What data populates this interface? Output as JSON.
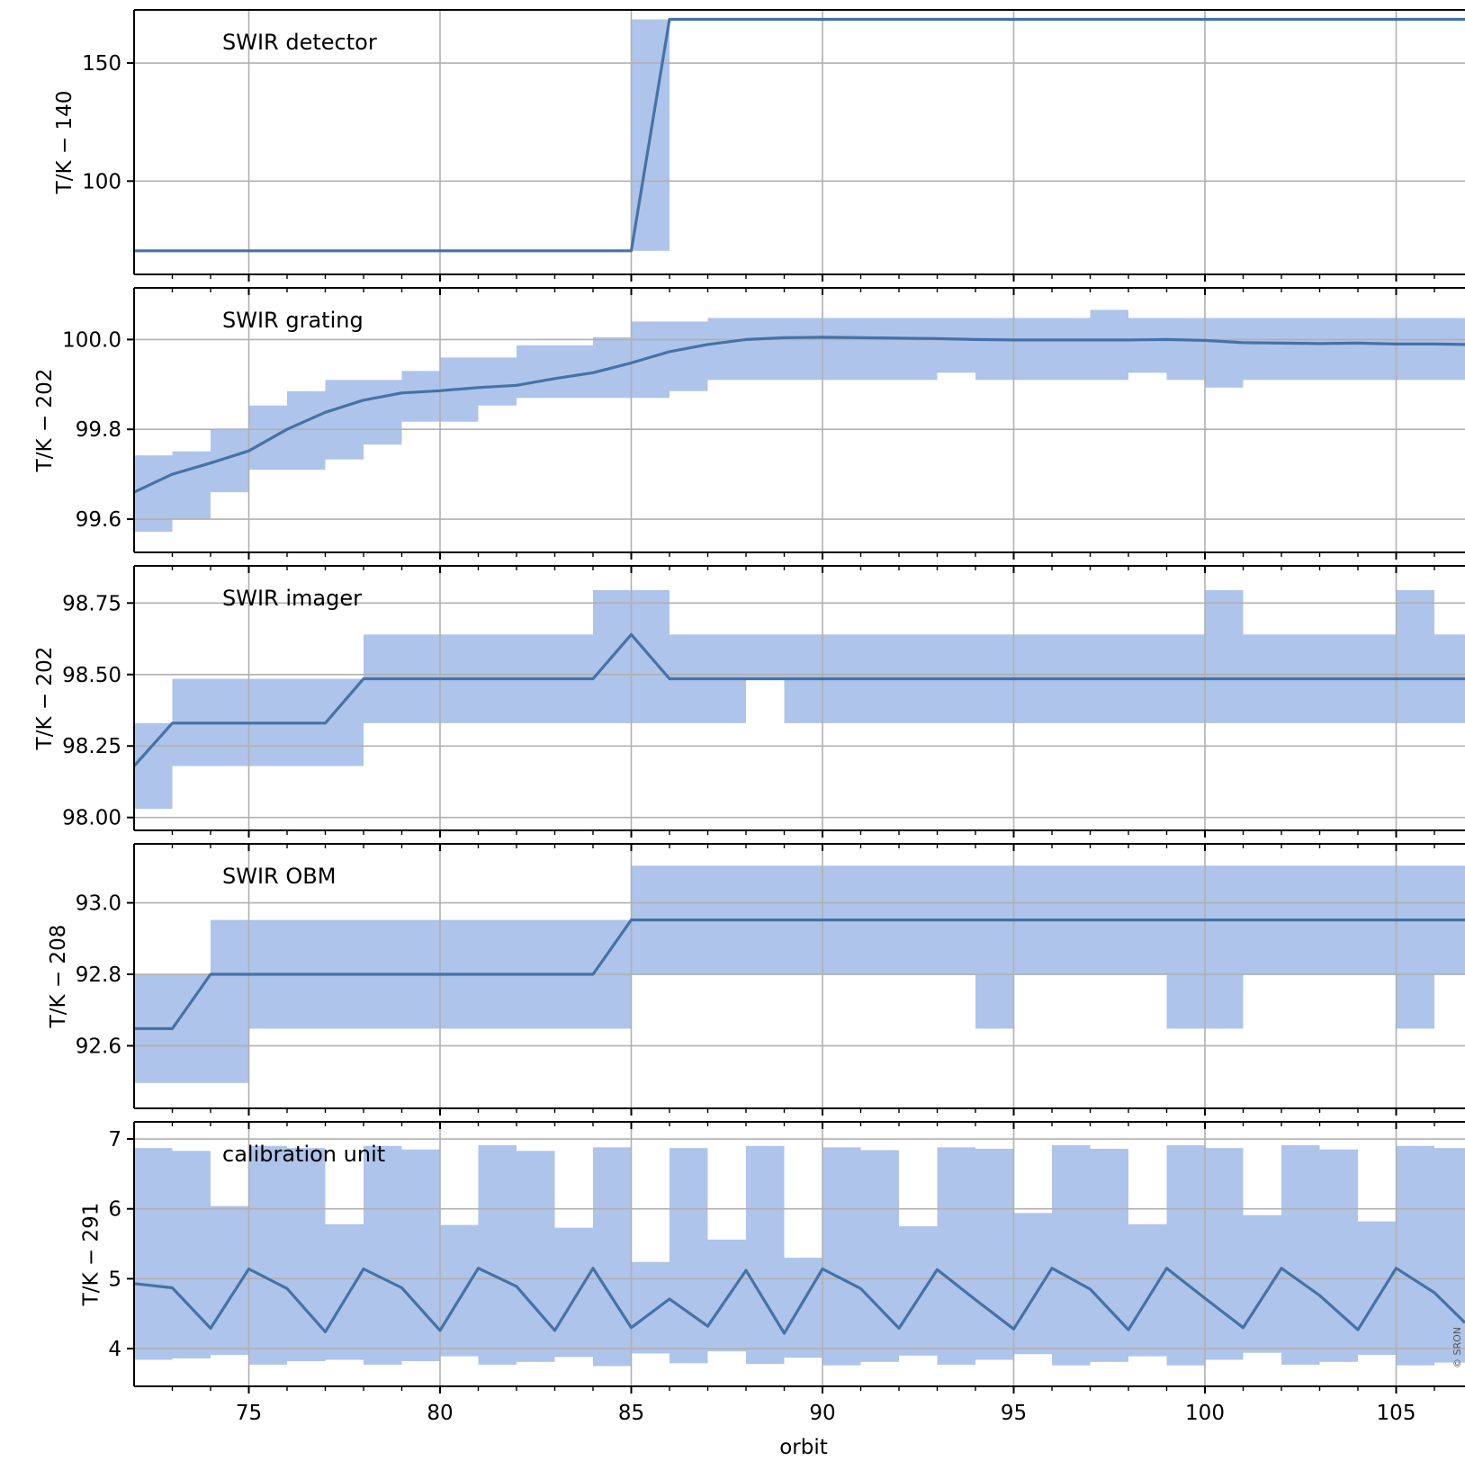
{
  "chart_data": [
    {
      "type": "line",
      "title": "SWIR detector",
      "ylabel": "T/K − 140",
      "xlabel": "",
      "xlim": [
        72,
        106.8
      ],
      "ylim": [
        60.5,
        172.5
      ],
      "yticks": [
        100,
        150
      ],
      "ytick_labels": [
        "100",
        "150"
      ],
      "grid": true,
      "colors": {
        "line": "#4572a7",
        "band": "#aec4eb"
      },
      "series": [
        {
          "x": [
            72,
            85,
            86,
            106.8
          ],
          "values": [
            70.5,
            70.5,
            168.5,
            168.5
          ]
        }
      ],
      "band": [
        {
          "x0": 72,
          "x1": 85,
          "low": 70.5,
          "high": 70.5
        },
        {
          "x0": 85,
          "x1": 86,
          "low": 70.5,
          "high": 168.5
        },
        {
          "x0": 86,
          "x1": 106.8,
          "low": 168.5,
          "high": 168.5
        }
      ]
    },
    {
      "type": "line",
      "title": "SWIR grating",
      "ylabel": "T/K − 202",
      "xlabel": "",
      "xlim": [
        72,
        106.8
      ],
      "ylim": [
        99.526,
        100.115
      ],
      "yticks": [
        99.6,
        99.8,
        100.0
      ],
      "ytick_labels": [
        "99.6",
        "99.8",
        "100.0"
      ],
      "grid": true,
      "colors": {
        "line": "#4572a7",
        "band": "#aec4eb"
      },
      "series": [
        {
          "x": [
            72,
            73,
            74,
            75,
            76,
            77,
            78,
            79,
            80,
            81,
            82,
            83,
            84,
            85,
            86,
            87,
            88,
            89,
            90,
            91,
            92,
            93,
            94,
            95,
            96,
            97,
            98,
            99,
            100,
            101,
            102,
            103,
            104,
            105,
            106,
            106.8
          ],
          "values": [
            99.66,
            99.7,
            99.725,
            99.752,
            99.8,
            99.838,
            99.865,
            99.881,
            99.886,
            99.893,
            99.898,
            99.913,
            99.926,
            99.948,
            99.973,
            99.989,
            100.0,
            100.004,
            100.005,
            100.004,
            100.003,
            100.002,
            100.0,
            99.999,
            99.999,
            99.999,
            99.999,
            100.0,
            99.998,
            99.993,
            99.992,
            99.991,
            99.992,
            99.99,
            99.99,
            99.989
          ]
        }
      ],
      "band": [
        {
          "x0": 72,
          "x1": 73,
          "low": 99.572,
          "high": 99.742
        },
        {
          "x0": 73,
          "x1": 74,
          "low": 99.6,
          "high": 99.751
        },
        {
          "x0": 74,
          "x1": 75,
          "low": 99.66,
          "high": 99.8
        },
        {
          "x0": 75,
          "x1": 76,
          "low": 99.71,
          "high": 99.853
        },
        {
          "x0": 76,
          "x1": 77,
          "low": 99.71,
          "high": 99.885
        },
        {
          "x0": 77,
          "x1": 78,
          "low": 99.733,
          "high": 99.91
        },
        {
          "x0": 78,
          "x1": 79,
          "low": 99.766,
          "high": 99.91
        },
        {
          "x0": 79,
          "x1": 80,
          "low": 99.817,
          "high": 99.93
        },
        {
          "x0": 80,
          "x1": 81,
          "low": 99.817,
          "high": 99.96
        },
        {
          "x0": 81,
          "x1": 82,
          "low": 99.853,
          "high": 99.96
        },
        {
          "x0": 82,
          "x1": 83,
          "low": 99.87,
          "high": 99.987
        },
        {
          "x0": 83,
          "x1": 84,
          "low": 99.87,
          "high": 99.987
        },
        {
          "x0": 84,
          "x1": 85,
          "low": 99.87,
          "high": 100.005
        },
        {
          "x0": 85,
          "x1": 86,
          "low": 99.87,
          "high": 100.04
        },
        {
          "x0": 86,
          "x1": 87,
          "low": 99.885,
          "high": 100.04
        },
        {
          "x0": 87,
          "x1": 93,
          "low": 99.91,
          "high": 100.048
        },
        {
          "x0": 93,
          "x1": 94,
          "low": 99.926,
          "high": 100.048
        },
        {
          "x0": 94,
          "x1": 97,
          "low": 99.91,
          "high": 100.048
        },
        {
          "x0": 97,
          "x1": 98,
          "low": 99.91,
          "high": 100.066
        },
        {
          "x0": 98,
          "x1": 99,
          "low": 99.926,
          "high": 100.048
        },
        {
          "x0": 99,
          "x1": 100,
          "low": 99.91,
          "high": 100.048
        },
        {
          "x0": 100,
          "x1": 101,
          "low": 99.893,
          "high": 100.048
        },
        {
          "x0": 101,
          "x1": 106.8,
          "low": 99.91,
          "high": 100.048
        }
      ]
    },
    {
      "type": "line",
      "title": "SWIR imager",
      "ylabel": "T/K − 202",
      "xlabel": "",
      "xlim": [
        72,
        106.8
      ],
      "ylim": [
        97.955,
        98.88
      ],
      "yticks": [
        98.0,
        98.25,
        98.5,
        98.75
      ],
      "ytick_labels": [
        "98.00",
        "98.25",
        "98.50",
        "98.75"
      ],
      "grid": true,
      "colors": {
        "line": "#4572a7",
        "band": "#aec4eb"
      },
      "series": [
        {
          "x": [
            72,
            73,
            74,
            75,
            76,
            77,
            78,
            79,
            80,
            81,
            82,
            83,
            84,
            85,
            86,
            87,
            88,
            89,
            90,
            91,
            92,
            93,
            94,
            95,
            96,
            97,
            98,
            99,
            100,
            101,
            102,
            103,
            104,
            105,
            106,
            106.8
          ],
          "values": [
            98.18,
            98.33,
            98.33,
            98.33,
            98.33,
            98.33,
            98.485,
            98.485,
            98.485,
            98.485,
            98.485,
            98.485,
            98.485,
            98.64,
            98.485,
            98.485,
            98.485,
            98.485,
            98.485,
            98.485,
            98.485,
            98.485,
            98.485,
            98.485,
            98.485,
            98.485,
            98.485,
            98.485,
            98.485,
            98.485,
            98.485,
            98.485,
            98.485,
            98.485,
            98.485,
            98.485
          ]
        }
      ],
      "band": [
        {
          "x0": 72,
          "x1": 73,
          "low": 98.03,
          "high": 98.33
        },
        {
          "x0": 73,
          "x1": 78,
          "low": 98.18,
          "high": 98.485
        },
        {
          "x0": 78,
          "x1": 84,
          "low": 98.33,
          "high": 98.64
        },
        {
          "x0": 84,
          "x1": 86,
          "low": 98.33,
          "high": 98.795
        },
        {
          "x0": 86,
          "x1": 88,
          "low": 98.33,
          "high": 98.64
        },
        {
          "x0": 88,
          "x1": 89,
          "low": 98.485,
          "high": 98.64
        },
        {
          "x0": 89,
          "x1": 100,
          "low": 98.33,
          "high": 98.64
        },
        {
          "x0": 100,
          "x1": 101,
          "low": 98.33,
          "high": 98.795
        },
        {
          "x0": 101,
          "x1": 105,
          "low": 98.33,
          "high": 98.64
        },
        {
          "x0": 105,
          "x1": 106,
          "low": 98.33,
          "high": 98.795
        },
        {
          "x0": 106,
          "x1": 106.8,
          "low": 98.33,
          "high": 98.64
        }
      ]
    },
    {
      "type": "line",
      "title": "SWIR OBM",
      "ylabel": "T/K − 208",
      "xlabel": "",
      "xlim": [
        72,
        106.8
      ],
      "ylim": [
        92.425,
        93.165
      ],
      "yticks": [
        92.6,
        92.8,
        93.0
      ],
      "ytick_labels": [
        "92.6",
        "92.8",
        "93.0"
      ],
      "grid": true,
      "colors": {
        "line": "#4572a7",
        "band": "#aec4eb"
      },
      "series": [
        {
          "x": [
            72,
            73,
            74,
            84,
            85,
            106.8
          ],
          "values": [
            92.648,
            92.648,
            92.8,
            92.8,
            92.952,
            92.952
          ]
        }
      ],
      "band": [
        {
          "x0": 72,
          "x1": 75,
          "low": 92.496,
          "high": 92.8
        },
        {
          "x0": 74,
          "x1": 85,
          "low": 92.648,
          "high": 92.952
        },
        {
          "x0": 85,
          "x1": 94,
          "low": 92.8,
          "high": 93.104
        },
        {
          "x0": 94,
          "x1": 95,
          "low": 92.648,
          "high": 93.104
        },
        {
          "x0": 95,
          "x1": 99,
          "low": 92.8,
          "high": 93.104
        },
        {
          "x0": 99,
          "x1": 101,
          "low": 92.648,
          "high": 93.104
        },
        {
          "x0": 101,
          "x1": 105,
          "low": 92.8,
          "high": 93.104
        },
        {
          "x0": 105,
          "x1": 106,
          "low": 92.648,
          "high": 93.104
        },
        {
          "x0": 106,
          "x1": 106.8,
          "low": 92.8,
          "high": 93.104
        }
      ]
    },
    {
      "type": "line",
      "title": "calibration unit",
      "ylabel": "T/K − 291",
      "xlabel": "orbit",
      "xlim": [
        72,
        106.8
      ],
      "ylim": [
        3.46,
        7.245
      ],
      "yticks": [
        4,
        5,
        6,
        7
      ],
      "ytick_labels": [
        "4",
        "5",
        "6",
        "7"
      ],
      "xticks": [
        75,
        80,
        85,
        90,
        95,
        100,
        105
      ],
      "xtick_labels": [
        "75",
        "80",
        "85",
        "90",
        "95",
        "100",
        "105"
      ],
      "grid": true,
      "colors": {
        "line": "#4572a7",
        "band": "#aec4eb"
      },
      "series": [
        {
          "x": [
            72,
            73,
            74,
            75,
            76,
            77,
            78,
            79,
            80,
            81,
            82,
            83,
            84,
            85,
            86,
            87,
            88,
            89,
            90,
            91,
            92,
            93,
            94,
            95,
            96,
            97,
            98,
            99,
            100,
            101,
            102,
            103,
            104,
            105,
            106,
            106.8
          ],
          "values": [
            4.93,
            4.87,
            4.29,
            5.14,
            4.86,
            4.24,
            5.14,
            4.87,
            4.26,
            5.15,
            4.89,
            4.26,
            5.15,
            4.3,
            4.71,
            4.32,
            5.12,
            4.22,
            5.14,
            4.86,
            4.29,
            5.13,
            4.7,
            4.28,
            5.15,
            4.85,
            4.27,
            5.15,
            4.72,
            4.3,
            5.15,
            4.76,
            4.27,
            5.15,
            4.8,
            4.37
          ]
        }
      ],
      "band": [
        {
          "x0": 72,
          "x1": 73,
          "low": 3.84,
          "high": 6.87
        },
        {
          "x0": 73,
          "x1": 74,
          "low": 3.86,
          "high": 6.83
        },
        {
          "x0": 74,
          "x1": 75,
          "low": 3.91,
          "high": 6.04
        },
        {
          "x0": 75,
          "x1": 76,
          "low": 3.77,
          "high": 6.9
        },
        {
          "x0": 76,
          "x1": 77,
          "low": 3.82,
          "high": 6.87
        },
        {
          "x0": 77,
          "x1": 78,
          "low": 3.84,
          "high": 5.78
        },
        {
          "x0": 78,
          "x1": 79,
          "low": 3.77,
          "high": 6.9
        },
        {
          "x0": 79,
          "x1": 80,
          "low": 3.82,
          "high": 6.85
        },
        {
          "x0": 80,
          "x1": 81,
          "low": 3.89,
          "high": 5.77
        },
        {
          "x0": 81,
          "x1": 82,
          "low": 3.77,
          "high": 6.91
        },
        {
          "x0": 82,
          "x1": 83,
          "low": 3.81,
          "high": 6.83
        },
        {
          "x0": 83,
          "x1": 84,
          "low": 3.88,
          "high": 5.73
        },
        {
          "x0": 84,
          "x1": 85,
          "low": 3.75,
          "high": 6.88
        },
        {
          "x0": 85,
          "x1": 86,
          "low": 3.93,
          "high": 5.24
        },
        {
          "x0": 86,
          "x1": 87,
          "low": 3.79,
          "high": 6.87
        },
        {
          "x0": 87,
          "x1": 88,
          "low": 3.96,
          "high": 5.56
        },
        {
          "x0": 88,
          "x1": 89,
          "low": 3.78,
          "high": 6.9
        },
        {
          "x0": 89,
          "x1": 90,
          "low": 3.87,
          "high": 5.3
        },
        {
          "x0": 90,
          "x1": 91,
          "low": 3.76,
          "high": 6.88
        },
        {
          "x0": 91,
          "x1": 92,
          "low": 3.81,
          "high": 6.84
        },
        {
          "x0": 92,
          "x1": 93,
          "low": 3.9,
          "high": 5.75
        },
        {
          "x0": 93,
          "x1": 94,
          "low": 3.77,
          "high": 6.88
        },
        {
          "x0": 94,
          "x1": 95,
          "low": 3.84,
          "high": 6.86
        },
        {
          "x0": 95,
          "x1": 96,
          "low": 3.92,
          "high": 5.94
        },
        {
          "x0": 96,
          "x1": 97,
          "low": 3.76,
          "high": 6.91
        },
        {
          "x0": 97,
          "x1": 98,
          "low": 3.81,
          "high": 6.86
        },
        {
          "x0": 98,
          "x1": 99,
          "low": 3.89,
          "high": 5.78
        },
        {
          "x0": 99,
          "x1": 100,
          "low": 3.76,
          "high": 6.91
        },
        {
          "x0": 100,
          "x1": 101,
          "low": 3.84,
          "high": 6.87
        },
        {
          "x0": 101,
          "x1": 102,
          "low": 3.94,
          "high": 5.91
        },
        {
          "x0": 102,
          "x1": 103,
          "low": 3.77,
          "high": 6.91
        },
        {
          "x0": 103,
          "x1": 104,
          "low": 3.81,
          "high": 6.85
        },
        {
          "x0": 104,
          "x1": 105,
          "low": 3.91,
          "high": 5.82
        },
        {
          "x0": 105,
          "x1": 106,
          "low": 3.76,
          "high": 6.9
        },
        {
          "x0": 106,
          "x1": 106.8,
          "low": 3.8,
          "high": 6.87
        }
      ]
    }
  ],
  "watermark": "© SRON"
}
